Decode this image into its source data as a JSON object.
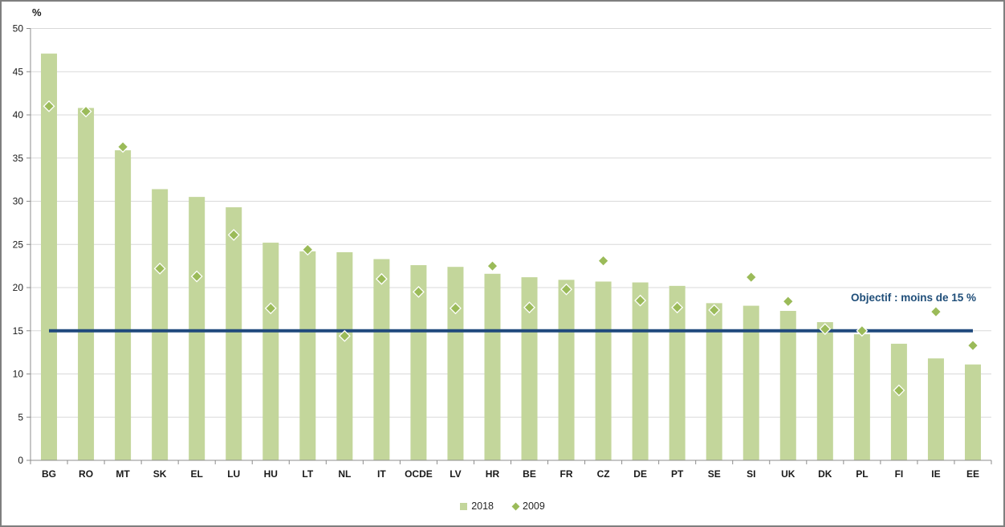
{
  "frame": {
    "unit_label": "%"
  },
  "legend": {
    "items": [
      {
        "label": "2018",
        "marker": "square",
        "color": "#c3d69b"
      },
      {
        "label": "2009",
        "marker": "diamond",
        "color": "#9bbb59"
      }
    ]
  },
  "target": {
    "label": "Objectif : moins de 15 %"
  },
  "chart_data": {
    "type": "bar",
    "title": "",
    "xlabel": "",
    "ylabel": "%",
    "ylim": [
      0,
      50
    ],
    "y_ticks": [
      0,
      5,
      10,
      15,
      20,
      25,
      30,
      35,
      40,
      45,
      50
    ],
    "grid": true,
    "legend_position": "bottom",
    "categories": [
      "BG",
      "RO",
      "MT",
      "SK",
      "EL",
      "LU",
      "HU",
      "LT",
      "NL",
      "IT",
      "OCDE",
      "LV",
      "HR",
      "BE",
      "FR",
      "CZ",
      "DE",
      "PT",
      "SE",
      "SI",
      "UK",
      "DK",
      "PL",
      "FI",
      "IE",
      "EE"
    ],
    "series": [
      {
        "name": "2018",
        "type": "bar",
        "color": "#c3d69b",
        "values": [
          47.1,
          40.8,
          35.9,
          31.4,
          30.5,
          29.3,
          25.2,
          24.2,
          24.1,
          23.3,
          22.6,
          22.4,
          21.6,
          21.2,
          20.9,
          20.7,
          20.6,
          20.2,
          18.2,
          17.9,
          17.3,
          16.0,
          14.6,
          13.5,
          11.8,
          11.1
        ]
      },
      {
        "name": "2009",
        "type": "scatter",
        "marker": "diamond",
        "color": "#9bbb59",
        "values": [
          41.0,
          40.4,
          36.3,
          22.2,
          21.3,
          26.1,
          17.6,
          24.4,
          14.4,
          21.0,
          19.5,
          17.6,
          22.5,
          17.7,
          19.8,
          23.1,
          18.5,
          17.7,
          17.4,
          21.2,
          18.4,
          15.2,
          15.0,
          8.1,
          17.2,
          13.3
        ]
      }
    ],
    "target_line": {
      "value": 15,
      "label": "Objectif : moins de 15 %",
      "color": "#1f497d"
    },
    "colors": {
      "grid": "#d9d9d9",
      "axis": "#8c8c8c",
      "marker_stroke": "#ffffff"
    }
  }
}
